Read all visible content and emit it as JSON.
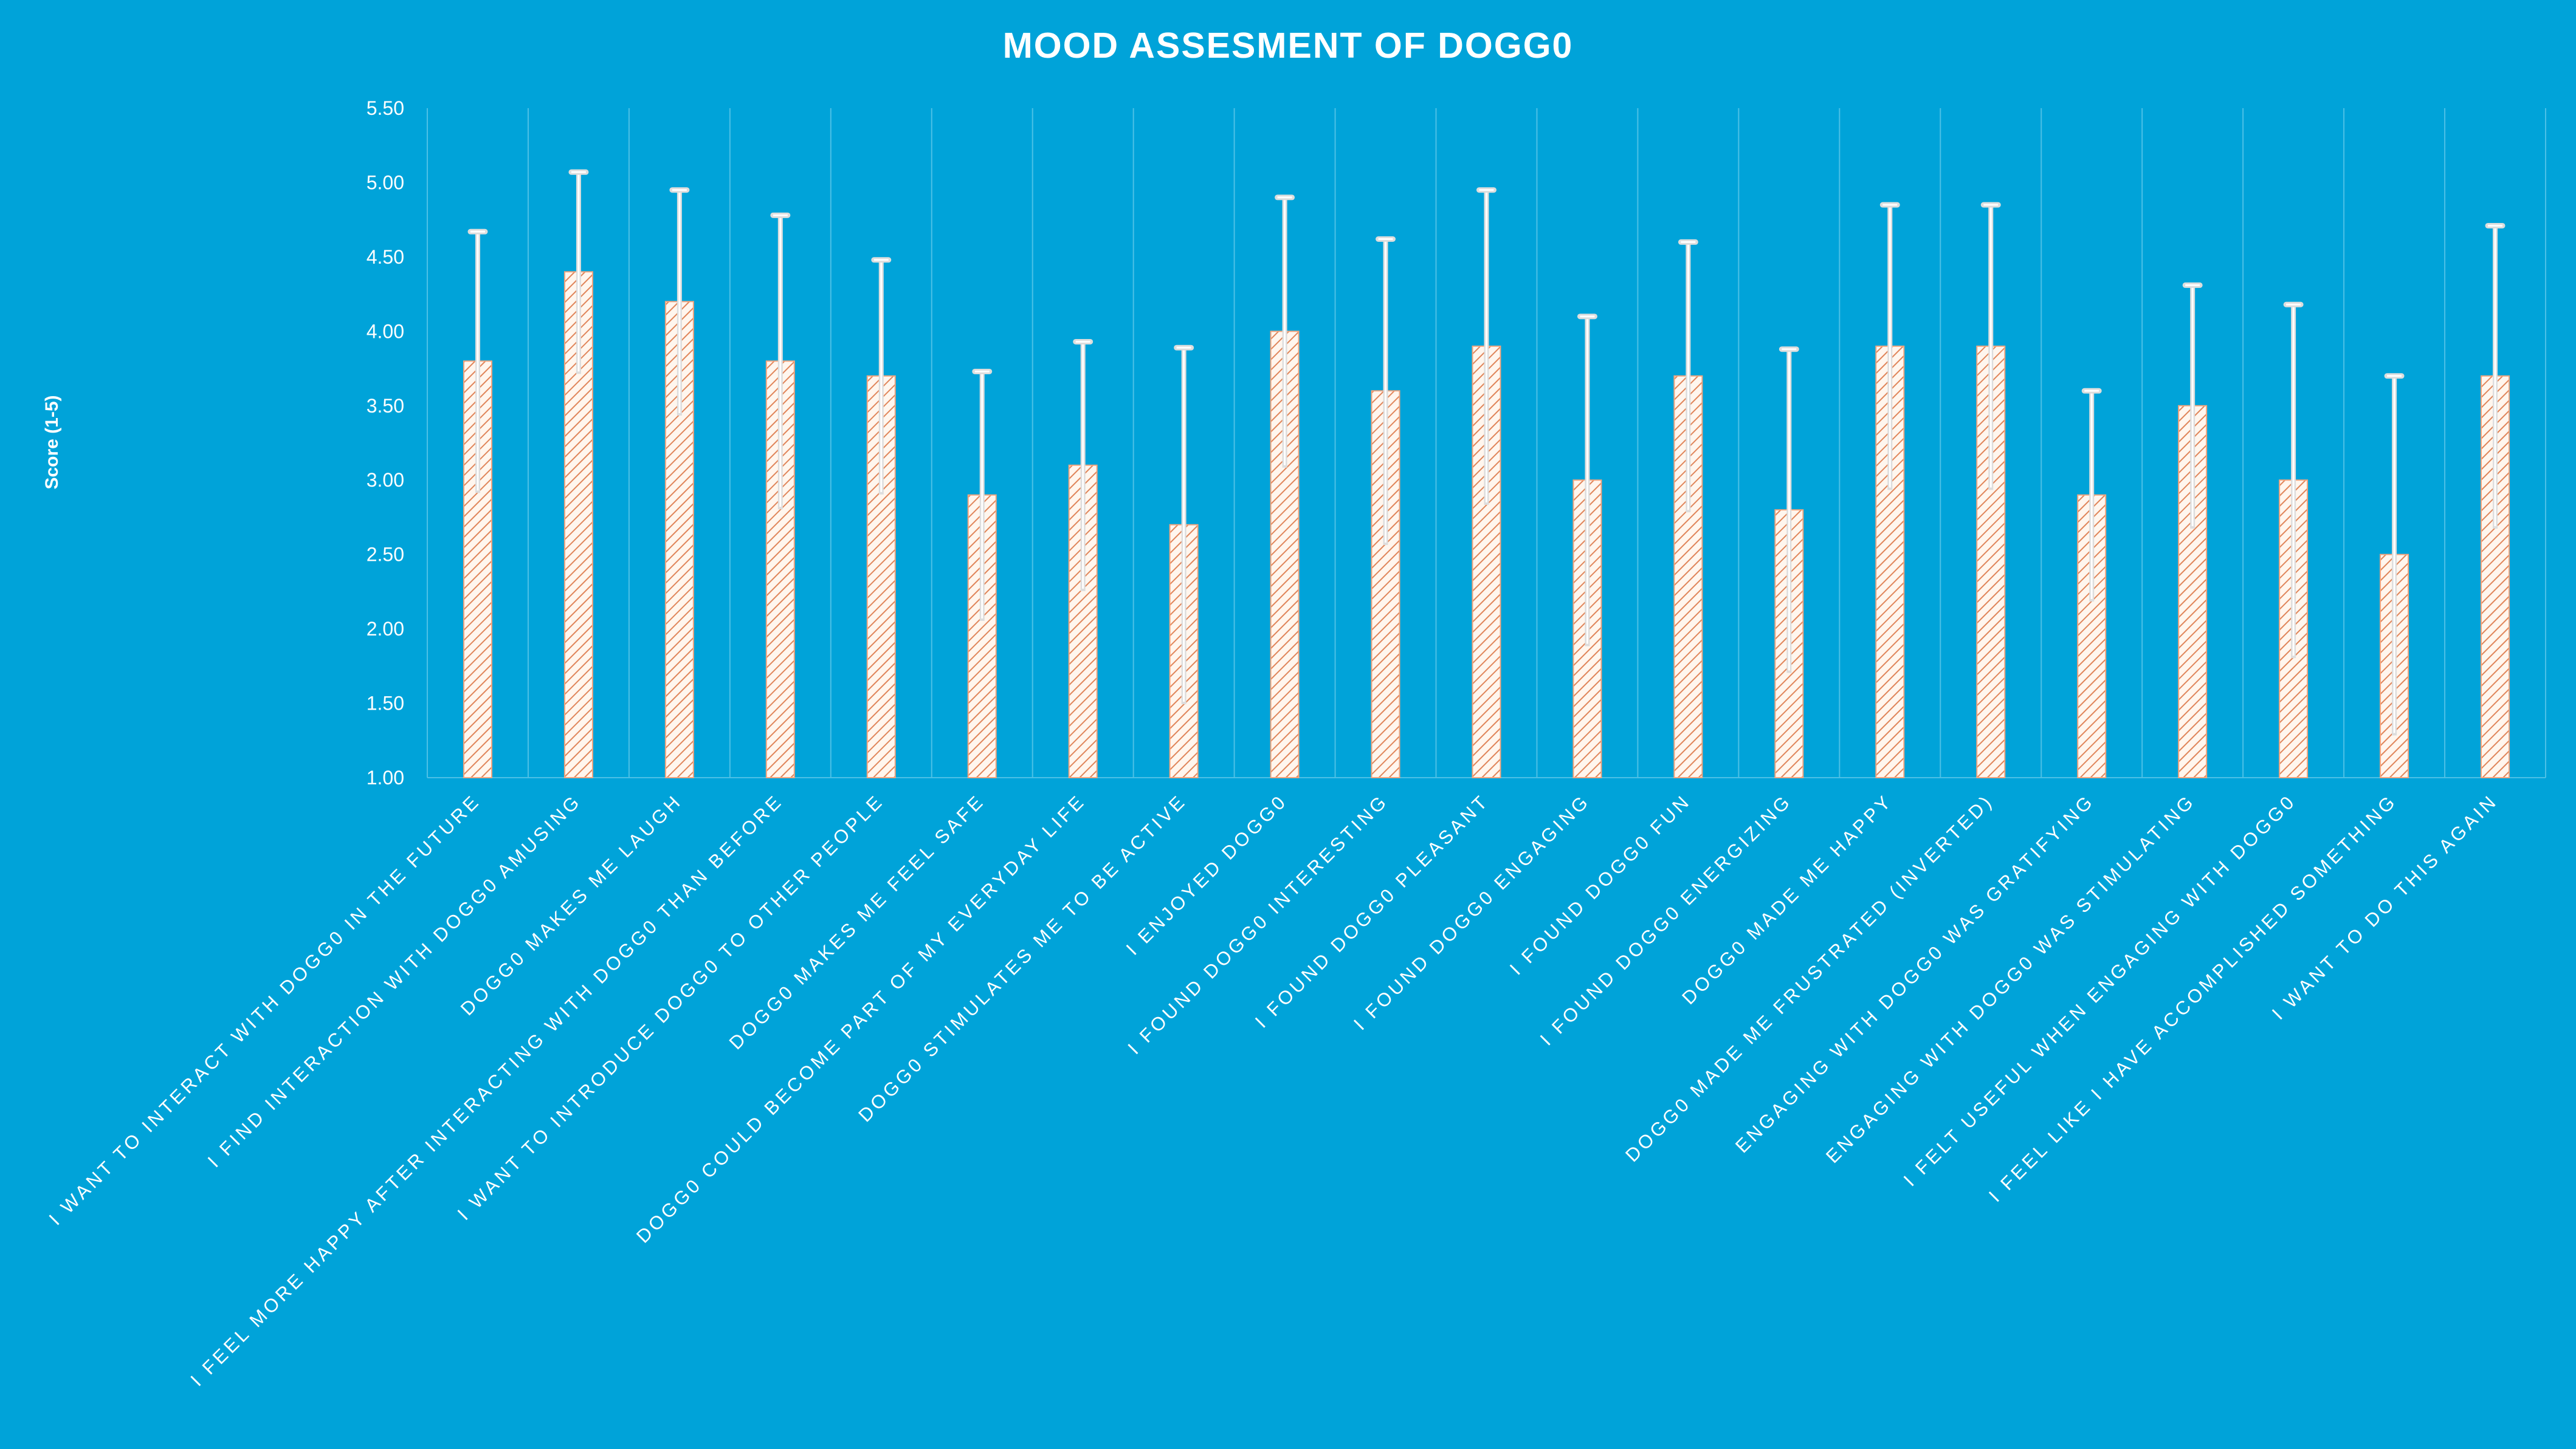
{
  "chart_data": {
    "type": "bar",
    "title": "MOOD ASSESMENT OF DOGG0",
    "xlabel": "",
    "ylabel": "Score (1-5)",
    "ylim": [
      1.0,
      5.5
    ],
    "y_ticks": [
      "1.00",
      "1.50",
      "2.00",
      "2.50",
      "3.00",
      "3.50",
      "4.00",
      "4.50",
      "5.00",
      "5.50"
    ],
    "grid": "vertical",
    "legend": "none",
    "categories": [
      "I WANT TO INTERACT WITH DOGG0 IN THE FUTURE",
      "I FIND INTERACTION WITH DOGG0 AMUSING",
      "DOGG0 MAKES ME LAUGH",
      "I FEEL MORE HAPPY AFTER INTERACTING WITH DOGG0 THAN BEFORE",
      "I WANT TO INTRODUCE DOGG0 TO OTHER PEOPLE",
      "DOGG0 MAKES ME FEEL SAFE",
      "DOGG0 COULD BECOME PART OF MY EVERYDAY LIFE",
      "DOGG0 STIMULATES ME TO BE ACTIVE",
      "I ENJOYED DOGG0",
      "I FOUND DOGG0 INTERESTING",
      "I FOUND DOGG0 PLEASANT",
      "I FOUND DOGG0 ENGAGING",
      "I FOUND DOGG0 FUN",
      "I FOUND DOGG0 ENERGIZING",
      "DOGG0 MADE ME HAPPY",
      "DOGG0 MADE ME FRUSTRATED (INVERTED)",
      "ENGAGING WITH DOGG0 WAS GRATIFYING",
      "ENGAGING WITH DOGG0 WAS STIMULATING",
      "I FELT USEFUL WHEN ENGAGING WITH DOGG0",
      "I FEEL LIKE I HAVE ACCOMPLISHED SOMETHING",
      "I WANT TO DO THIS AGAIN"
    ],
    "series": [
      {
        "values": [
          3.8,
          4.4,
          4.2,
          3.8,
          3.7,
          2.9,
          3.1,
          2.7,
          4.0,
          3.6,
          3.9,
          3.0,
          3.7,
          2.8,
          3.9,
          3.9,
          2.9,
          3.5,
          3.0,
          2.5,
          3.7
        ],
        "error": [
          0.87,
          0.67,
          0.75,
          0.98,
          0.78,
          0.83,
          0.83,
          1.19,
          0.9,
          1.02,
          1.05,
          1.1,
          0.9,
          1.08,
          0.95,
          0.95,
          0.7,
          0.81,
          1.18,
          1.2,
          1.01
        ]
      }
    ],
    "colors": {
      "background": "#00A3D9",
      "bar_fill": "#FFF6EE",
      "bar_hatch": "#E0855A",
      "bar_stroke": "#F2A57F",
      "error_bar": "#DDDDDD",
      "gridline": "#4CC0E6",
      "text": "#FFFFFF"
    }
  }
}
